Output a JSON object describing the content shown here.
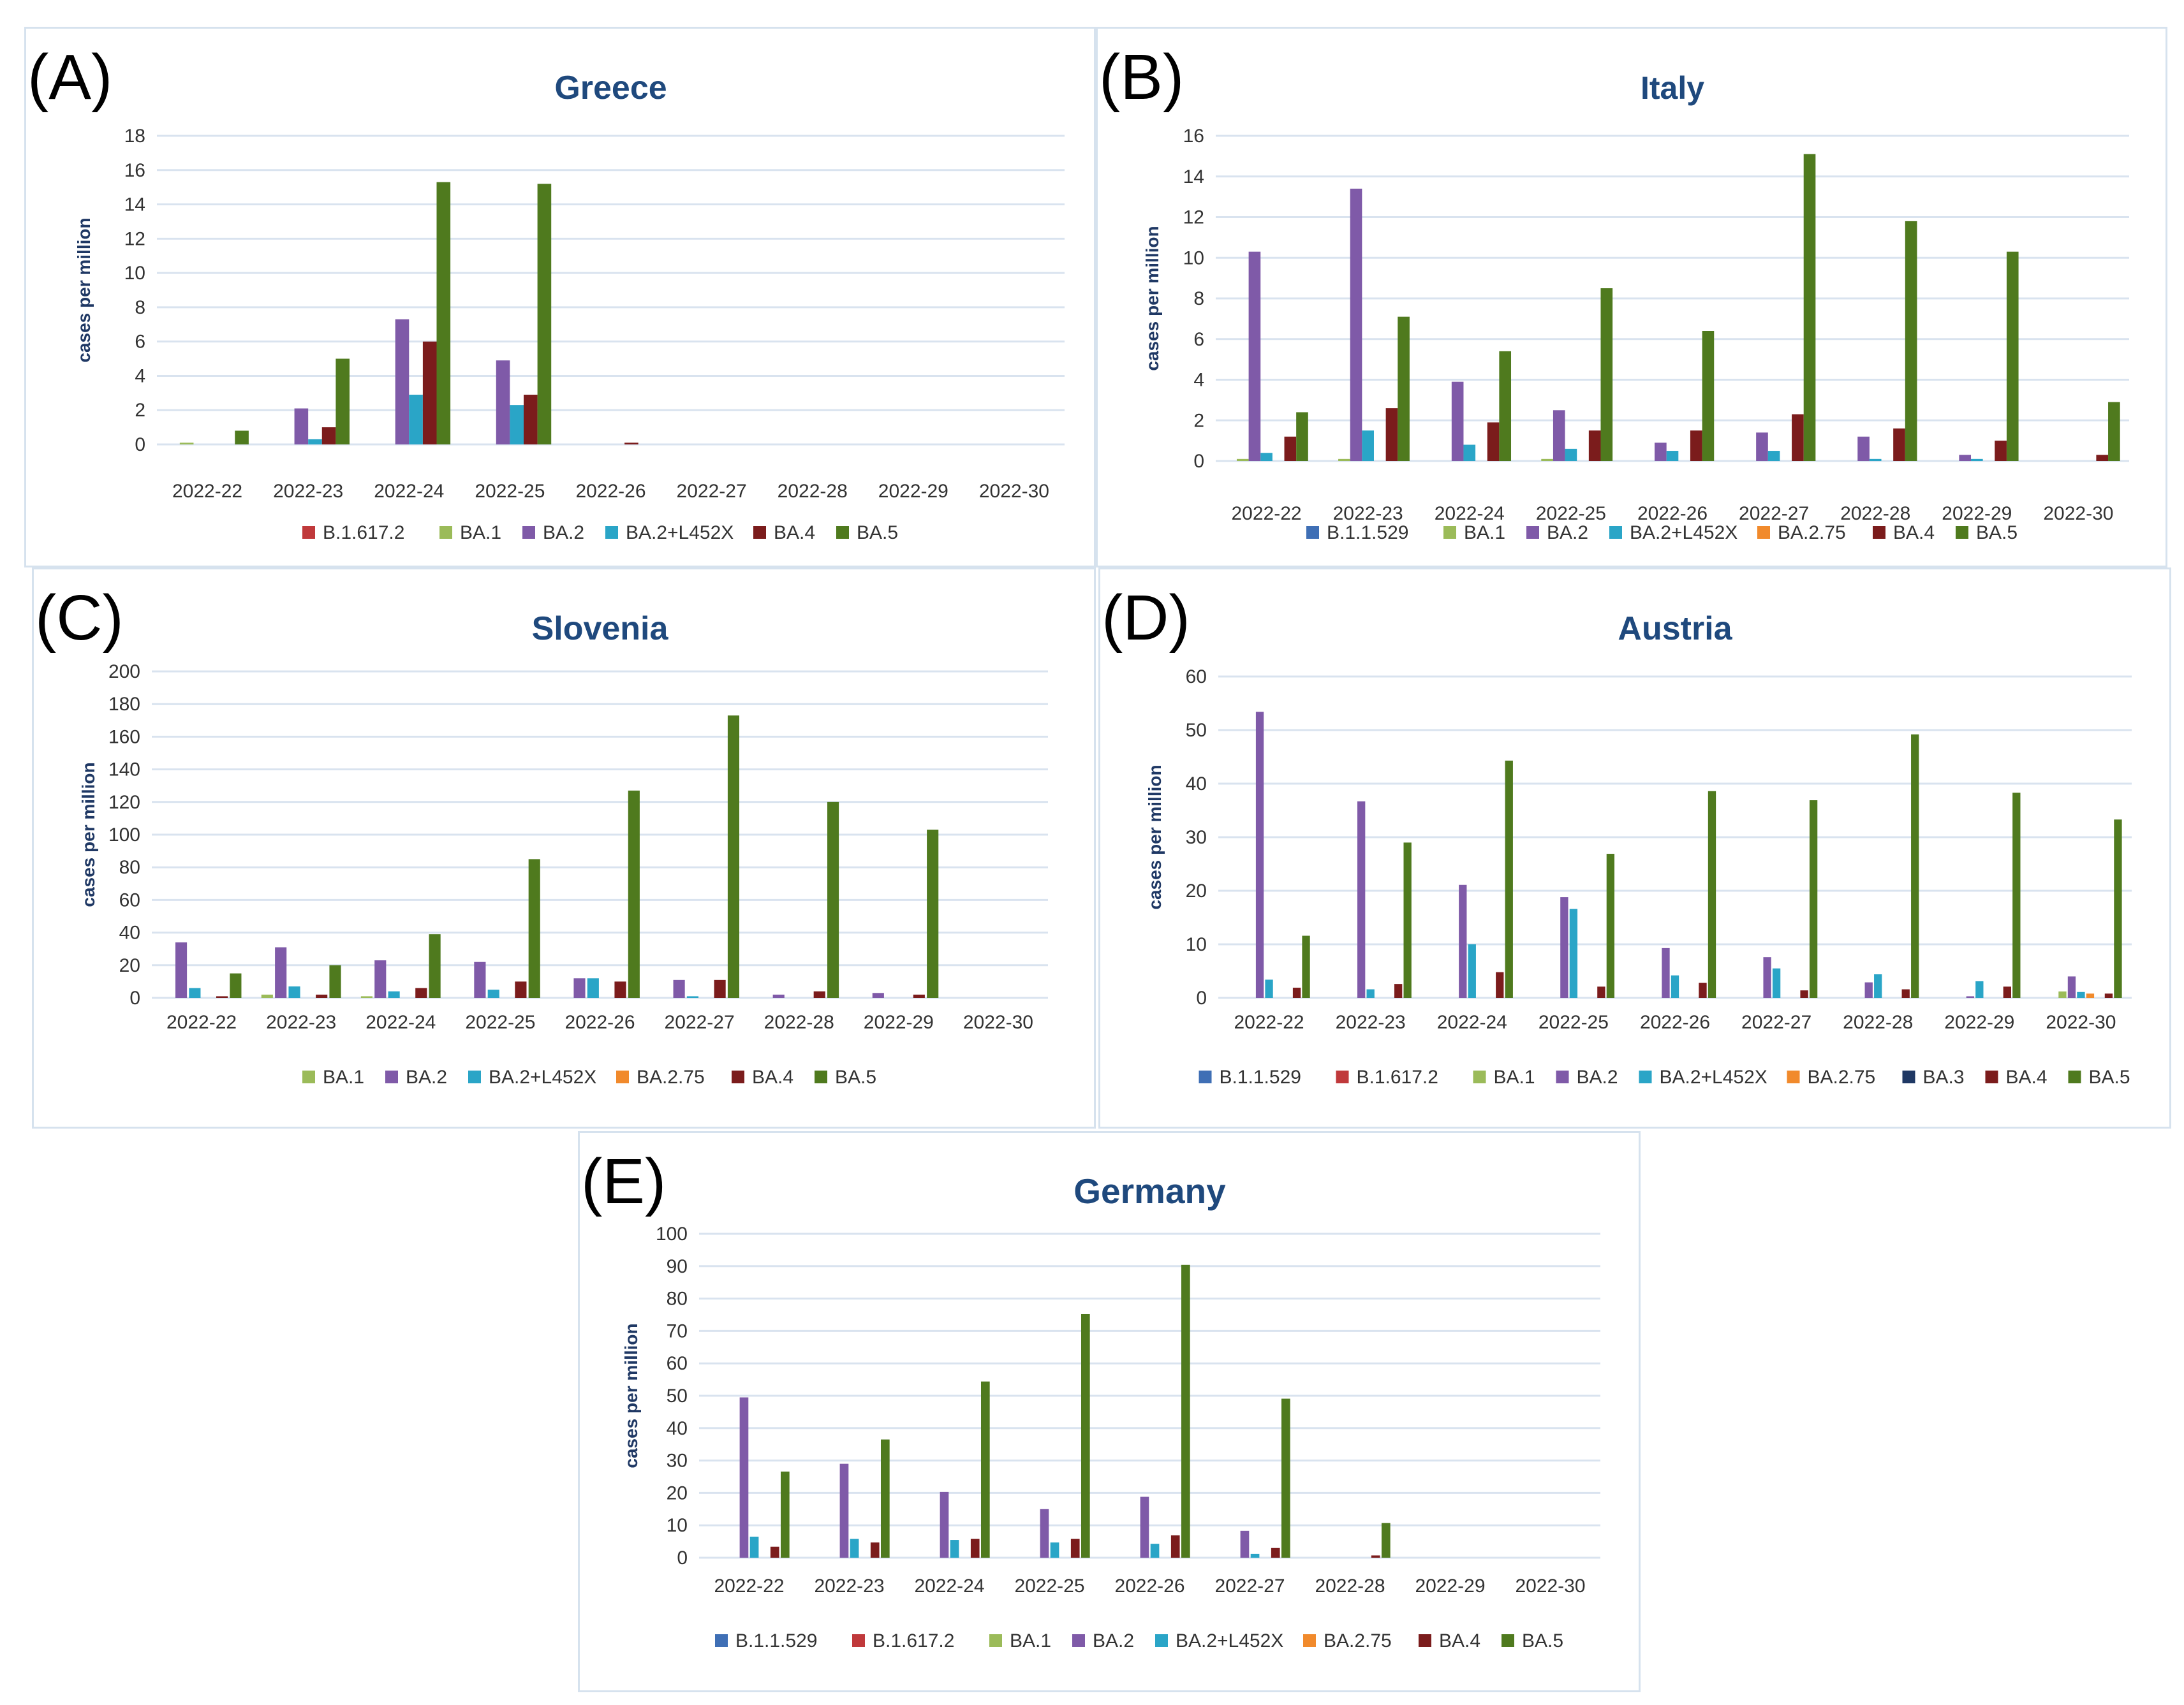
{
  "chart_data": [
    {
      "id": "greece",
      "type": "bar",
      "panel_label": "(A)",
      "title": "Greece",
      "ylabel": "cases per million",
      "xlabel": "",
      "ylim": [
        0,
        18
      ],
      "ytick_step": 2,
      "categories": [
        "2022-22",
        "2022-23",
        "2022-24",
        "2022-25",
        "2022-26",
        "2022-27",
        "2022-28",
        "2022-29",
        "2022-30"
      ],
      "legend_position": "bottom",
      "series": [
        {
          "name": "B.1.617.2",
          "color": "#c0393b",
          "values": [
            0,
            0,
            0,
            0,
            0,
            0,
            0,
            0,
            0
          ]
        },
        {
          "name": "BA.1",
          "color": "#9bbb59",
          "values": [
            0.1,
            0,
            0,
            0,
            0,
            0,
            0,
            0,
            0
          ]
        },
        {
          "name": "BA.2",
          "color": "#7f5aa8",
          "values": [
            0,
            2.1,
            7.3,
            4.9,
            0,
            0,
            0,
            0,
            0
          ]
        },
        {
          "name": "BA.2+L452X",
          "color": "#2aa5c7",
          "values": [
            0,
            0.3,
            2.9,
            2.3,
            0,
            0,
            0,
            0,
            0
          ]
        },
        {
          "name": "BA.4",
          "color": "#7b1c1c",
          "values": [
            0,
            1.0,
            6.0,
            2.9,
            0.1,
            0,
            0,
            0,
            0
          ]
        },
        {
          "name": "BA.5",
          "color": "#4f7a1e",
          "values": [
            0.8,
            5.0,
            15.3,
            15.2,
            0,
            0,
            0,
            0,
            0
          ]
        }
      ]
    },
    {
      "id": "italy",
      "type": "bar",
      "panel_label": "(B)",
      "title": "Italy",
      "ylabel": "cases per million",
      "xlabel": "",
      "ylim": [
        0,
        16
      ],
      "ytick_step": 2,
      "categories": [
        "2022-22",
        "2022-23",
        "2022-24",
        "2022-25",
        "2022-26",
        "2022-27",
        "2022-28",
        "2022-29",
        "2022-30"
      ],
      "legend_position": "bottom",
      "series": [
        {
          "name": "B.1.1.529",
          "color": "#3f6fb5",
          "values": [
            0,
            0,
            0,
            0,
            0,
            0,
            0,
            0,
            0
          ]
        },
        {
          "name": "BA.1",
          "color": "#9bbb59",
          "values": [
            0.1,
            0.1,
            0,
            0.1,
            0,
            0,
            0,
            0,
            0
          ]
        },
        {
          "name": "BA.2",
          "color": "#7f5aa8",
          "values": [
            10.3,
            13.4,
            3.9,
            2.5,
            0.9,
            1.4,
            1.2,
            0.3,
            0
          ]
        },
        {
          "name": "BA.2+L452X",
          "color": "#2aa5c7",
          "values": [
            0.4,
            1.5,
            0.8,
            0.6,
            0.5,
            0.5,
            0.1,
            0.1,
            0
          ]
        },
        {
          "name": "BA.2.75",
          "color": "#f18a2c",
          "values": [
            0,
            0,
            0,
            0,
            0,
            0,
            0,
            0,
            0
          ]
        },
        {
          "name": "BA.4",
          "color": "#7b1c1c",
          "values": [
            1.2,
            2.6,
            1.9,
            1.5,
            1.5,
            2.3,
            1.6,
            1.0,
            0.3
          ]
        },
        {
          "name": "BA.5",
          "color": "#4f7a1e",
          "values": [
            2.4,
            7.1,
            5.4,
            8.5,
            6.4,
            15.1,
            11.8,
            10.3,
            2.9
          ]
        }
      ]
    },
    {
      "id": "slovenia",
      "type": "bar",
      "panel_label": "(C)",
      "title": "Slovenia",
      "ylabel": "cases per million",
      "xlabel": "",
      "ylim": [
        0,
        200
      ],
      "ytick_step": 20,
      "categories": [
        "2022-22",
        "2022-23",
        "2022-24",
        "2022-25",
        "2022-26",
        "2022-27",
        "2022-28",
        "2022-29",
        "2022-30"
      ],
      "legend_position": "bottom",
      "series": [
        {
          "name": "BA.1",
          "color": "#9bbb59",
          "values": [
            0,
            2,
            1,
            0,
            0,
            0,
            0,
            0,
            0
          ]
        },
        {
          "name": "BA.2",
          "color": "#7f5aa8",
          "values": [
            34,
            31,
            23,
            22,
            12,
            11,
            2,
            3,
            0
          ]
        },
        {
          "name": "BA.2+L452X",
          "color": "#2aa5c7",
          "values": [
            6,
            7,
            4,
            5,
            12,
            1,
            0,
            0,
            0
          ]
        },
        {
          "name": "BA.2.75",
          "color": "#f18a2c",
          "values": [
            0,
            0,
            0,
            0,
            0,
            0,
            0,
            0,
            0
          ]
        },
        {
          "name": "BA.4",
          "color": "#7b1c1c",
          "values": [
            1,
            2,
            6,
            10,
            10,
            11,
            4,
            2,
            0
          ]
        },
        {
          "name": "BA.5",
          "color": "#4f7a1e",
          "values": [
            15,
            20,
            39,
            85,
            127,
            173,
            120,
            103,
            0
          ]
        }
      ]
    },
    {
      "id": "austria",
      "type": "bar",
      "panel_label": "(D)",
      "title": "Austria",
      "ylabel": "cases per million",
      "xlabel": "",
      "ylim": [
        0,
        60
      ],
      "ytick_step": 10,
      "categories": [
        "2022-22",
        "2022-23",
        "2022-24",
        "2022-25",
        "2022-26",
        "2022-27",
        "2022-28",
        "2022-29",
        "2022-30"
      ],
      "legend_position": "bottom",
      "series": [
        {
          "name": "B.1.1.529",
          "color": "#3f6fb5",
          "values": [
            0,
            0,
            0,
            0,
            0,
            0,
            0,
            0,
            0
          ]
        },
        {
          "name": "B.1.617.2",
          "color": "#c0393b",
          "values": [
            0,
            0,
            0,
            0,
            0,
            0,
            0,
            0,
            0
          ]
        },
        {
          "name": "BA.1",
          "color": "#9bbb59",
          "values": [
            0,
            0,
            0,
            0,
            0,
            0,
            0,
            0,
            1.2
          ]
        },
        {
          "name": "BA.2",
          "color": "#7f5aa8",
          "values": [
            53.4,
            36.7,
            21.1,
            18.8,
            9.3,
            7.6,
            2.9,
            0.3,
            4.0
          ]
        },
        {
          "name": "BA.2+L452X",
          "color": "#2aa5c7",
          "values": [
            3.4,
            1.6,
            10.0,
            16.6,
            4.2,
            5.5,
            4.4,
            3.1,
            1.1
          ]
        },
        {
          "name": "BA.2.75",
          "color": "#f18a2c",
          "values": [
            0,
            0,
            0,
            0,
            0,
            0,
            0,
            0,
            0.8
          ]
        },
        {
          "name": "BA.3",
          "color": "#1f3864",
          "values": [
            0,
            0,
            0,
            0,
            0,
            0,
            0,
            0,
            0
          ]
        },
        {
          "name": "BA.4",
          "color": "#7b1c1c",
          "values": [
            1.9,
            2.6,
            4.8,
            2.1,
            2.8,
            1.4,
            1.6,
            2.1,
            0.8
          ]
        },
        {
          "name": "BA.5",
          "color": "#4f7a1e",
          "values": [
            11.6,
            29.0,
            44.3,
            26.9,
            38.6,
            36.9,
            49.2,
            38.3,
            33.3
          ]
        }
      ]
    },
    {
      "id": "germany",
      "type": "bar",
      "panel_label": "(E)",
      "title": "Germany",
      "ylabel": "cases per million",
      "xlabel": "",
      "ylim": [
        0,
        100
      ],
      "ytick_step": 10,
      "categories": [
        "2022-22",
        "2022-23",
        "2022-24",
        "2022-25",
        "2022-26",
        "2022-27",
        "2022-28",
        "2022-29",
        "2022-30"
      ],
      "legend_position": "bottom",
      "series": [
        {
          "name": "B.1.1.529",
          "color": "#3f6fb5",
          "values": [
            0,
            0,
            0,
            0,
            0,
            0,
            0,
            0,
            0
          ]
        },
        {
          "name": "B.1.617.2",
          "color": "#c0393b",
          "values": [
            0,
            0,
            0,
            0,
            0,
            0,
            0,
            0,
            0
          ]
        },
        {
          "name": "BA.1",
          "color": "#9bbb59",
          "values": [
            0,
            0,
            0,
            0,
            0,
            0,
            0,
            0,
            0
          ]
        },
        {
          "name": "BA.2",
          "color": "#7f5aa8",
          "values": [
            49.5,
            29.0,
            20.3,
            15.0,
            18.8,
            8.3,
            0,
            0,
            0
          ]
        },
        {
          "name": "BA.2+L452X",
          "color": "#2aa5c7",
          "values": [
            6.5,
            5.8,
            5.5,
            4.7,
            4.3,
            1.2,
            0,
            0,
            0
          ]
        },
        {
          "name": "BA.2.75",
          "color": "#f18a2c",
          "values": [
            0,
            0,
            0,
            0,
            0,
            0,
            0,
            0,
            0
          ]
        },
        {
          "name": "BA.4",
          "color": "#7b1c1c",
          "values": [
            3.4,
            4.7,
            5.8,
            5.8,
            6.9,
            3.0,
            0.7,
            0,
            0
          ]
        },
        {
          "name": "BA.5",
          "color": "#4f7a1e",
          "values": [
            26.6,
            36.5,
            54.4,
            75.2,
            90.4,
            49.1,
            10.7,
            0,
            0
          ]
        }
      ]
    }
  ]
}
